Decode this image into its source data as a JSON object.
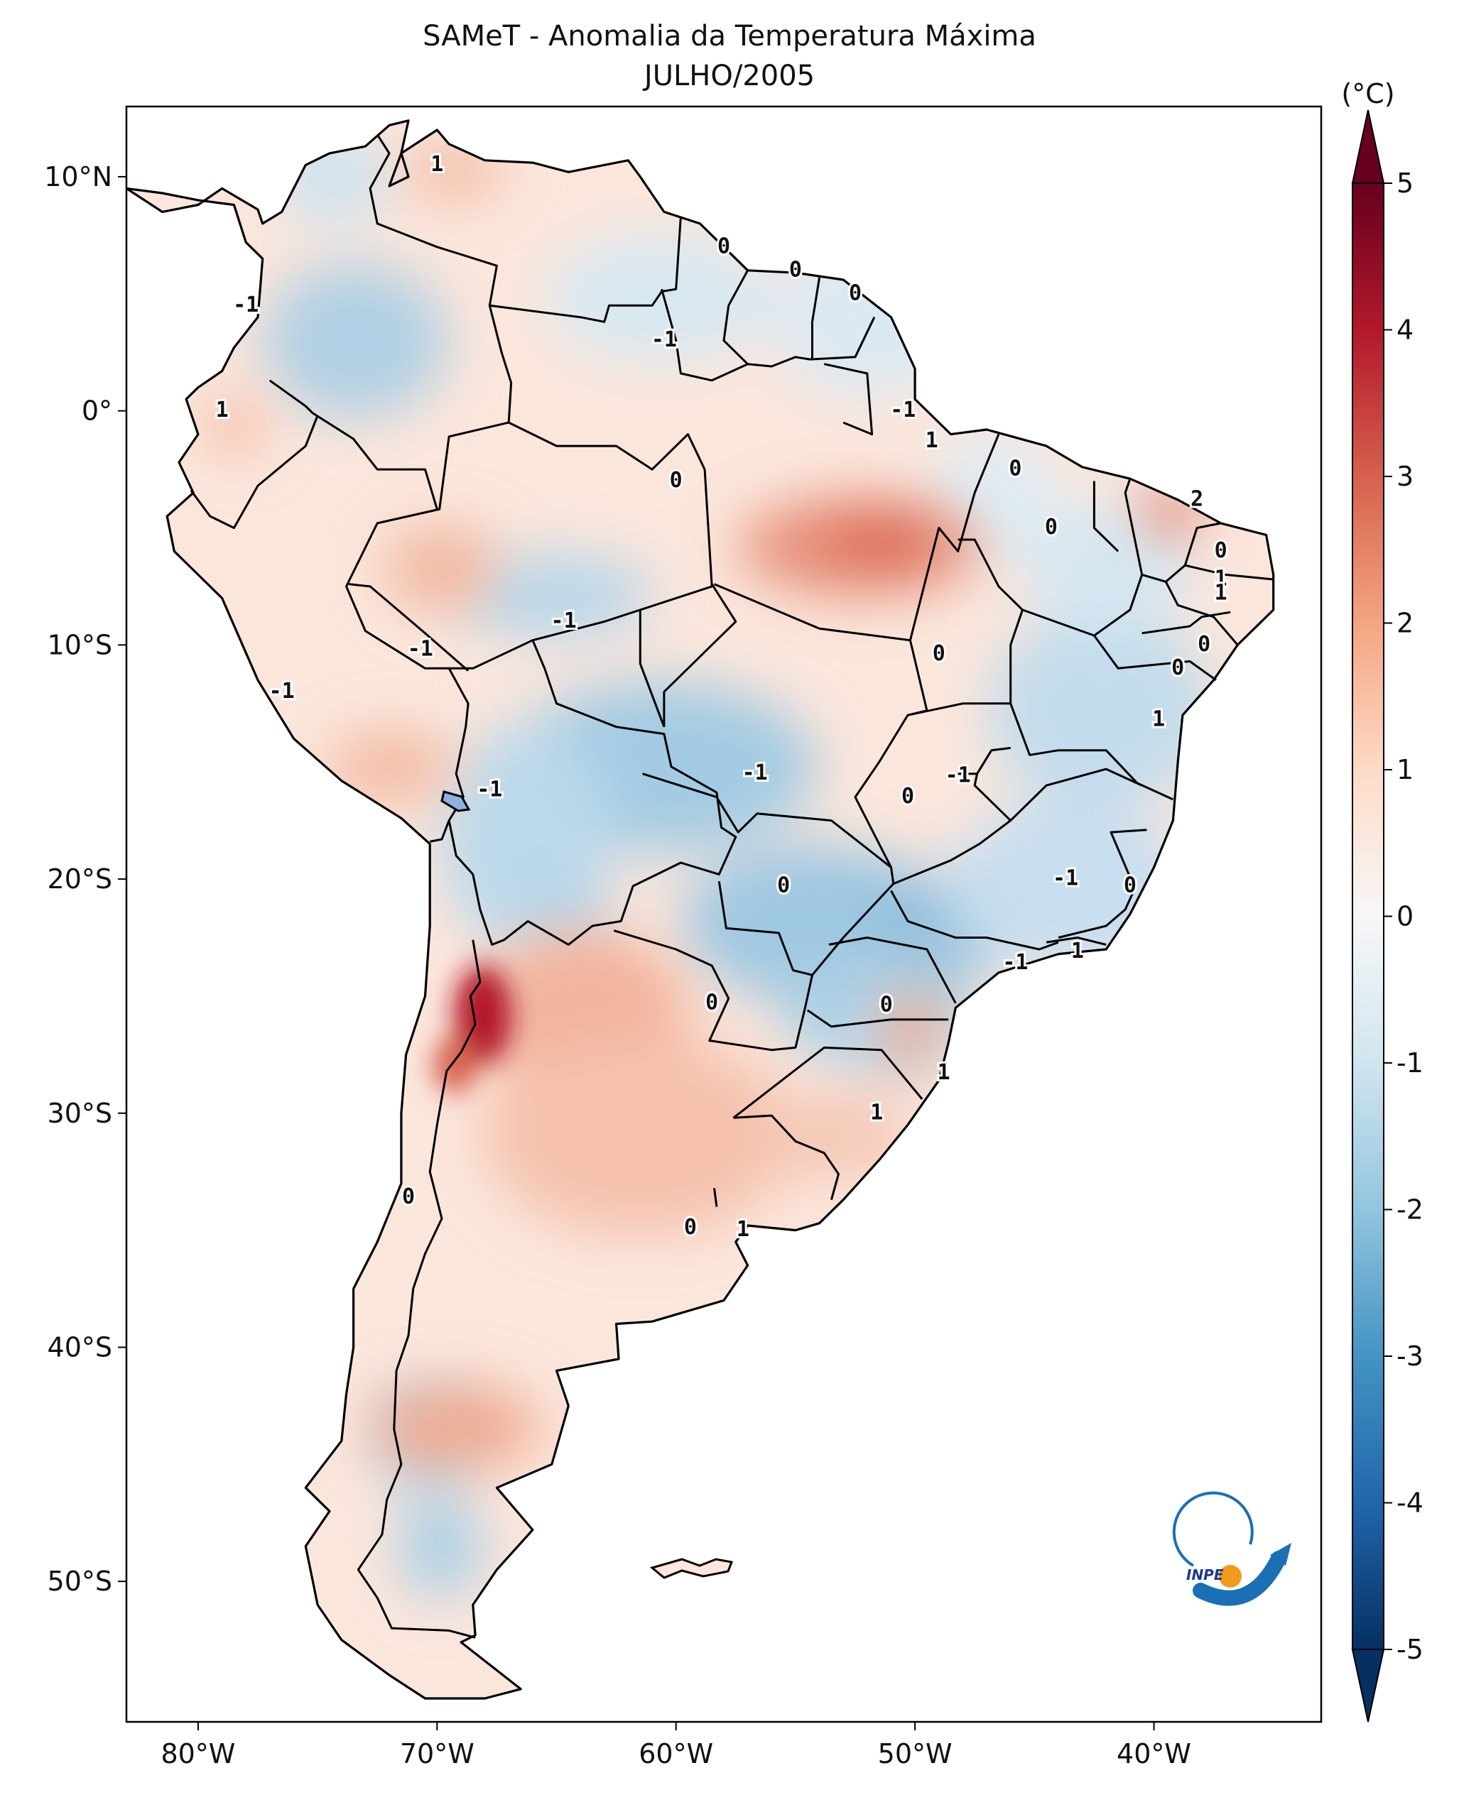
{
  "title": "SAMeT - Anomalia da Temperatura Máxima",
  "subtitle": "JULHO/2005",
  "colorbar": {
    "unit_label": "(°C)",
    "ticks": [
      "5",
      "4",
      "3",
      "2",
      "1",
      "0",
      "-1",
      "-2",
      "-3",
      "-4",
      "-5"
    ],
    "range": [
      -5,
      5
    ],
    "colors": {
      "deep_red": "#67001f",
      "red": "#b2182b",
      "salmon": "#d6604d",
      "light_salmon": "#f4a582",
      "pale_salmon": "#fddbc7",
      "white": "#f7f7f7",
      "pale_blue": "#d1e5f0",
      "light_blue": "#92c5de",
      "blue": "#4393c3",
      "dark_blue": "#2166ac",
      "deep_blue": "#053061"
    }
  },
  "axes": {
    "lon_ticks": [
      "80°W",
      "70°W",
      "60°W",
      "50°W",
      "40°W"
    ],
    "lat_ticks": [
      "10°N",
      "0°",
      "10°S",
      "20°S",
      "30°S",
      "40°S",
      "50°S"
    ],
    "lon_range": [
      -83,
      -33
    ],
    "lat_range": [
      -56,
      13
    ]
  },
  "contour_labels": [
    {
      "text": "1",
      "lon": -70,
      "lat": 10.5
    },
    {
      "text": "0",
      "lon": -58,
      "lat": 7
    },
    {
      "text": "0",
      "lon": -55,
      "lat": 6
    },
    {
      "text": "0",
      "lon": -52.5,
      "lat": 5
    },
    {
      "text": "-1",
      "lon": -78,
      "lat": 4.5
    },
    {
      "text": "-1",
      "lon": -60.5,
      "lat": 3
    },
    {
      "text": "-1",
      "lon": -50.5,
      "lat": 0
    },
    {
      "text": "1",
      "lon": -79,
      "lat": 0
    },
    {
      "text": "1",
      "lon": -49.3,
      "lat": -1.3
    },
    {
      "text": "0",
      "lon": -60,
      "lat": -3
    },
    {
      "text": "0",
      "lon": -45.8,
      "lat": -2.5
    },
    {
      "text": "2",
      "lon": -38.2,
      "lat": -3.8
    },
    {
      "text": "0",
      "lon": -44.3,
      "lat": -5
    },
    {
      "text": "0",
      "lon": -37.2,
      "lat": -6
    },
    {
      "text": "1",
      "lon": -37.2,
      "lat": -7.2
    },
    {
      "text": "1",
      "lon": -37.2,
      "lat": -7.8
    },
    {
      "text": "-1",
      "lon": -64.7,
      "lat": -9
    },
    {
      "text": "-1",
      "lon": -70.7,
      "lat": -10.2
    },
    {
      "text": "0",
      "lon": -49,
      "lat": -10.4
    },
    {
      "text": "0",
      "lon": -37.9,
      "lat": -10
    },
    {
      "text": "0",
      "lon": -39,
      "lat": -11
    },
    {
      "text": "-1",
      "lon": -76.5,
      "lat": -12
    },
    {
      "text": "1",
      "lon": -39.8,
      "lat": -13.2
    },
    {
      "text": "-1",
      "lon": -56.7,
      "lat": -15.5
    },
    {
      "text": "-1",
      "lon": -48.2,
      "lat": -15.6
    },
    {
      "text": "0",
      "lon": -50.3,
      "lat": -16.5
    },
    {
      "text": "-1",
      "lon": -67.8,
      "lat": -16.2
    },
    {
      "text": "0",
      "lon": -55.5,
      "lat": -20.3
    },
    {
      "text": "-1",
      "lon": -43.7,
      "lat": -20
    },
    {
      "text": "0",
      "lon": -41,
      "lat": -20.3
    },
    {
      "text": "1",
      "lon": -43.2,
      "lat": -23.1
    },
    {
      "text": "-1",
      "lon": -45.8,
      "lat": -23.6
    },
    {
      "text": "0",
      "lon": -58.5,
      "lat": -25.3
    },
    {
      "text": "0",
      "lon": -51.2,
      "lat": -25.4
    },
    {
      "text": "1",
      "lon": -48.8,
      "lat": -28.3
    },
    {
      "text": "1",
      "lon": -51.6,
      "lat": -30
    },
    {
      "text": "0",
      "lon": -71.2,
      "lat": -33.6
    },
    {
      "text": "0",
      "lon": -59.4,
      "lat": -34.9
    },
    {
      "text": "1",
      "lon": -57.2,
      "lat": -35
    }
  ],
  "logo": {
    "text": "INPE"
  }
}
